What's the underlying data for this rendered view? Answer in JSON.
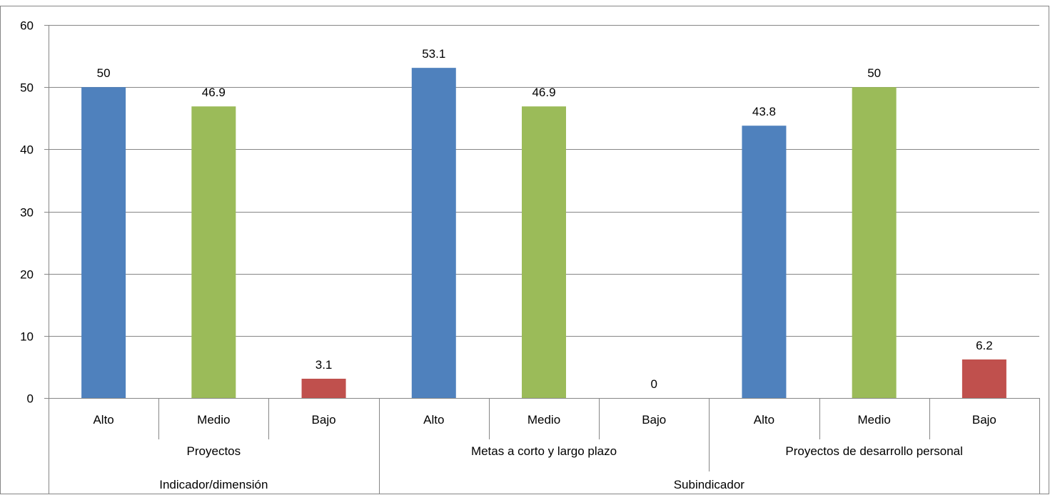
{
  "chart_data": {
    "type": "bar",
    "title": "",
    "xlabel": "",
    "ylabel": "",
    "ylim": [
      0,
      60
    ],
    "yticks": [
      0,
      10,
      20,
      30,
      40,
      50,
      60
    ],
    "grid": true,
    "legend": "none",
    "bars": [
      {
        "label": "Alto",
        "value": 50,
        "value_label": "50",
        "color": "#4F81BD"
      },
      {
        "label": "Medio",
        "value": 46.9,
        "value_label": "46.9",
        "color": "#9BBB59"
      },
      {
        "label": "Bajo",
        "value": 3.1,
        "value_label": "3.1",
        "color": "#C0504D"
      },
      {
        "label": "Alto",
        "value": 53.1,
        "value_label": "53.1",
        "color": "#4F81BD"
      },
      {
        "label": "Medio",
        "value": 46.9,
        "value_label": "46.9",
        "color": "#9BBB59"
      },
      {
        "label": "Bajo",
        "value": 0,
        "value_label": "0",
        "color": "#C0504D"
      },
      {
        "label": "Alto",
        "value": 43.8,
        "value_label": "43.8",
        "color": "#4F81BD"
      },
      {
        "label": "Medio",
        "value": 50,
        "value_label": "50",
        "color": "#9BBB59"
      },
      {
        "label": "Bajo",
        "value": 6.2,
        "value_label": "6.2",
        "color": "#C0504D"
      }
    ],
    "group_levels": [
      [
        {
          "label": "Proyectos",
          "start": 0,
          "span": 3
        },
        {
          "label": "Metas a corto y largo plazo",
          "start": 3,
          "span": 3
        },
        {
          "label": "Proyectos de desarrollo personal",
          "start": 6,
          "span": 3
        }
      ],
      [
        {
          "label": "Indicador/dimensión",
          "start": 0,
          "span": 3
        },
        {
          "label": "Subindicador",
          "start": 3,
          "span": 6
        }
      ]
    ]
  }
}
